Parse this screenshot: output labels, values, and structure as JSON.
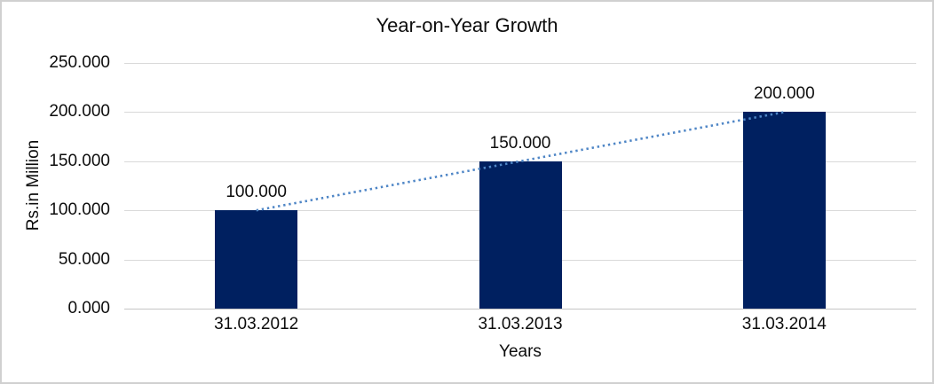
{
  "chart_data": {
    "type": "bar",
    "title": "Year-on-Year Growth",
    "categories": [
      "31.03.2012",
      "31.03.2013",
      "31.03.2014"
    ],
    "values": [
      100,
      150,
      200
    ],
    "data_labels": [
      "100.000",
      "150.000",
      "200.000"
    ],
    "xlabel": "Years",
    "ylabel": "Rs.in Million",
    "ylim": [
      0,
      250
    ],
    "y_ticks": [
      {
        "value": 0,
        "label": "0.000"
      },
      {
        "value": 50,
        "label": "50.000"
      },
      {
        "value": 100,
        "label": "100.000"
      },
      {
        "value": 150,
        "label": "150.000"
      },
      {
        "value": 200,
        "label": "200.000"
      },
      {
        "value": 250,
        "label": "250.000"
      }
    ],
    "legend": "none",
    "grid": "horizontal",
    "trendline": {
      "type": "linear",
      "style": "dotted",
      "from_category": "31.03.2012",
      "to_category": "31.03.2014",
      "from_value": 100,
      "to_value": 200
    },
    "colors": {
      "bar": "#002060",
      "trendline": "#4f86c6",
      "gridline": "#d9d9d9",
      "axis_line": "#c6c6c6",
      "text": "#0d0d0d",
      "chart_border": "#d0d0d0",
      "background": "#ffffff"
    }
  }
}
